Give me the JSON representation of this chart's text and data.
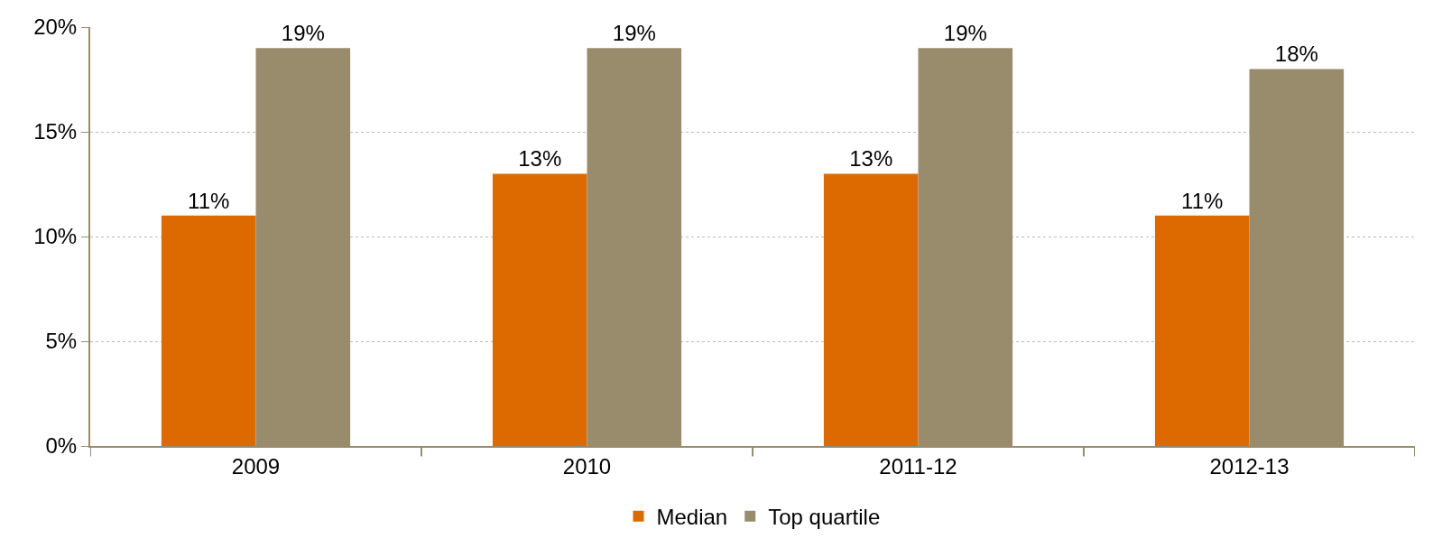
{
  "chart_data": {
    "type": "bar",
    "categories": [
      "2009",
      "2010",
      "2011-12",
      "2012-13"
    ],
    "series": [
      {
        "name": "Median",
        "color": "#dd6a00",
        "values": [
          11,
          13,
          13,
          11
        ],
        "value_labels": [
          "11%",
          "13%",
          "13%",
          "11%"
        ]
      },
      {
        "name": "Top quartile",
        "color": "#998c6d",
        "values": [
          19,
          19,
          19,
          18
        ],
        "value_labels": [
          "19%",
          "19%",
          "19%",
          "18%"
        ]
      }
    ],
    "ylim": [
      0,
      20
    ],
    "yticks": [
      {
        "value": 0,
        "label": "0%"
      },
      {
        "value": 5,
        "label": "5%"
      },
      {
        "value": 10,
        "label": "10%"
      },
      {
        "value": 15,
        "label": "15%"
      },
      {
        "value": 20,
        "label": "20%"
      }
    ],
    "grid": "y",
    "legend": "bottom"
  }
}
